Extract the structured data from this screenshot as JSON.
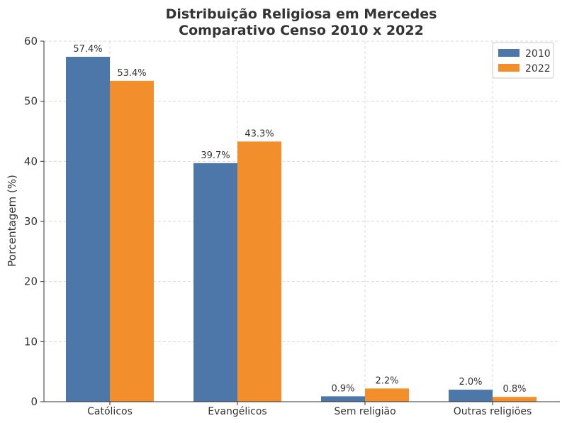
{
  "chart_data": {
    "type": "bar",
    "title": "Distribuição Religiosa em Mercedes",
    "subtitle": "Comparativo Censo 2010 x 2022",
    "xlabel": "",
    "ylabel": "Porcentagem (%)",
    "ylim": [
      0,
      60
    ],
    "yticks": [
      "0",
      "10",
      "20",
      "30",
      "40",
      "50",
      "60"
    ],
    "grid": true,
    "legend_position": "top-right",
    "categories": [
      "Católicos",
      "Evangélicos",
      "Sem religião",
      "Outras religiões"
    ],
    "series": [
      {
        "name": "2010",
        "color": "#4c77a8",
        "values": [
          57.4,
          39.7,
          0.9,
          2.0
        ],
        "labels": [
          "57.4%",
          "39.7%",
          "0.9%",
          "2.0%"
        ]
      },
      {
        "name": "2022",
        "color": "#f28e2b",
        "values": [
          53.4,
          43.3,
          2.2,
          0.8
        ],
        "labels": [
          "53.4%",
          "43.3%",
          "2.2%",
          "0.8%"
        ]
      }
    ]
  }
}
